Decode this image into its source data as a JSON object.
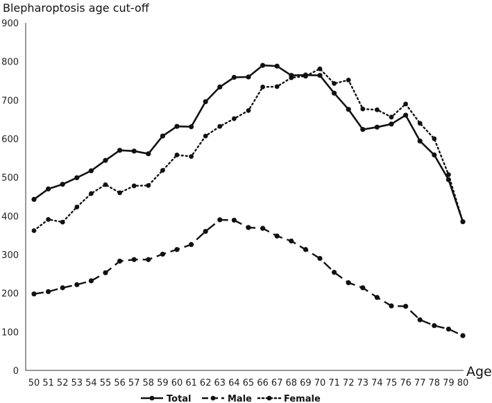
{
  "chart_data": {
    "type": "line",
    "title": "Blepharoptosis age cut-off",
    "xlabel": "Age",
    "ylabel": "",
    "ylim": [
      0,
      900
    ],
    "yticks": [
      "0",
      "100",
      "200",
      "300",
      "400",
      "500",
      "600",
      "700",
      "800",
      "900"
    ],
    "categories": [
      "50",
      "51",
      "52",
      "53",
      "54",
      "55",
      "56",
      "57",
      "58",
      "59",
      "60",
      "61",
      "62",
      "63",
      "64",
      "65",
      "66",
      "67",
      "68",
      "69",
      "70",
      "71",
      "72",
      "73",
      "74",
      "75",
      "76",
      "77",
      "78",
      "79",
      "80"
    ],
    "grid": false,
    "legend_position": "bottom",
    "series": [
      {
        "name": "Total",
        "style": "solid",
        "color": "#111111",
        "values": [
          443,
          470,
          482,
          499,
          517,
          544,
          570,
          568,
          561,
          607,
          632,
          631,
          696,
          734,
          759,
          760,
          790,
          788,
          764,
          765,
          764,
          718,
          676,
          624,
          630,
          638,
          661,
          594,
          558,
          494,
          385
        ]
      },
      {
        "name": "Male",
        "style": "dashed",
        "color": "#111111",
        "values": [
          198,
          204,
          214,
          222,
          232,
          253,
          283,
          287,
          287,
          301,
          313,
          326,
          360,
          390,
          389,
          370,
          368,
          348,
          335,
          313,
          290,
          254,
          227,
          214,
          189,
          167,
          166,
          131,
          116,
          107,
          90
        ]
      },
      {
        "name": "Female",
        "style": "dotted",
        "color": "#111111",
        "values": [
          362,
          391,
          384,
          423,
          458,
          481,
          460,
          478,
          479,
          518,
          558,
          554,
          607,
          632,
          652,
          673,
          734,
          735,
          758,
          762,
          781,
          743,
          752,
          677,
          675,
          656,
          690,
          640,
          600,
          507,
          385
        ]
      }
    ]
  }
}
